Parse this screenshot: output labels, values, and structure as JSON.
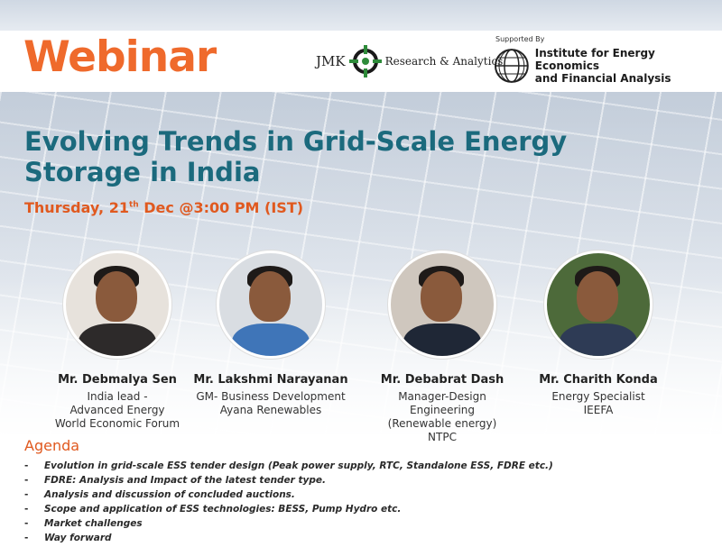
{
  "header": {
    "title": "Webinar",
    "partner_name": "JMK",
    "partner_sub": "Research & Analytics",
    "supported_by": "Supported By",
    "supporter_line1": "Institute for Energy Economics",
    "supporter_line2": "and Financial Analysis"
  },
  "event": {
    "title": "Evolving Trends in Grid-Scale Energy Storage in India",
    "day": "Thursday, 21",
    "day_suffix": "th",
    "time": " Dec @3:00 PM (IST)"
  },
  "speakers": [
    {
      "name": "Mr. Debmalya Sen",
      "role_lines": [
        "India lead -",
        "Advanced Energy",
        "World Economic Forum"
      ],
      "shirt": "#2d2a2a",
      "bg": "#e7e2dc"
    },
    {
      "name": "Mr. Lakshmi Narayanan",
      "role_lines": [
        "GM- Business Development",
        "Ayana Renewables"
      ],
      "shirt": "#3f75b8",
      "bg": "#d9dde2"
    },
    {
      "name": "Mr. Debabrat Dash",
      "role_lines": [
        "Manager-Design",
        "Engineering",
        "(Renewable energy)",
        "NTPC"
      ],
      "shirt": "#1f2736",
      "bg": "#cfc7be"
    },
    {
      "name": "Mr. Charith Konda",
      "role_lines": [
        "Energy Specialist",
        "IEEFA"
      ],
      "shirt": "#2e3b55",
      "bg": "#4d6a3a"
    }
  ],
  "agenda": {
    "title": "Agenda",
    "items": [
      "Evolution in grid-scale ESS tender design (Peak power supply, RTC, Standalone ESS, FDRE etc.)",
      "FDRE: Analysis and Impact of the latest tender type.",
      "Analysis and discussion of concluded auctions.",
      "Scope and application of ESS technologies: BESS, Pump Hydro etc.",
      "Market challenges",
      "Way forward"
    ]
  },
  "colors": {
    "accent": "#ef6a2c",
    "title": "#1b6a7d"
  }
}
